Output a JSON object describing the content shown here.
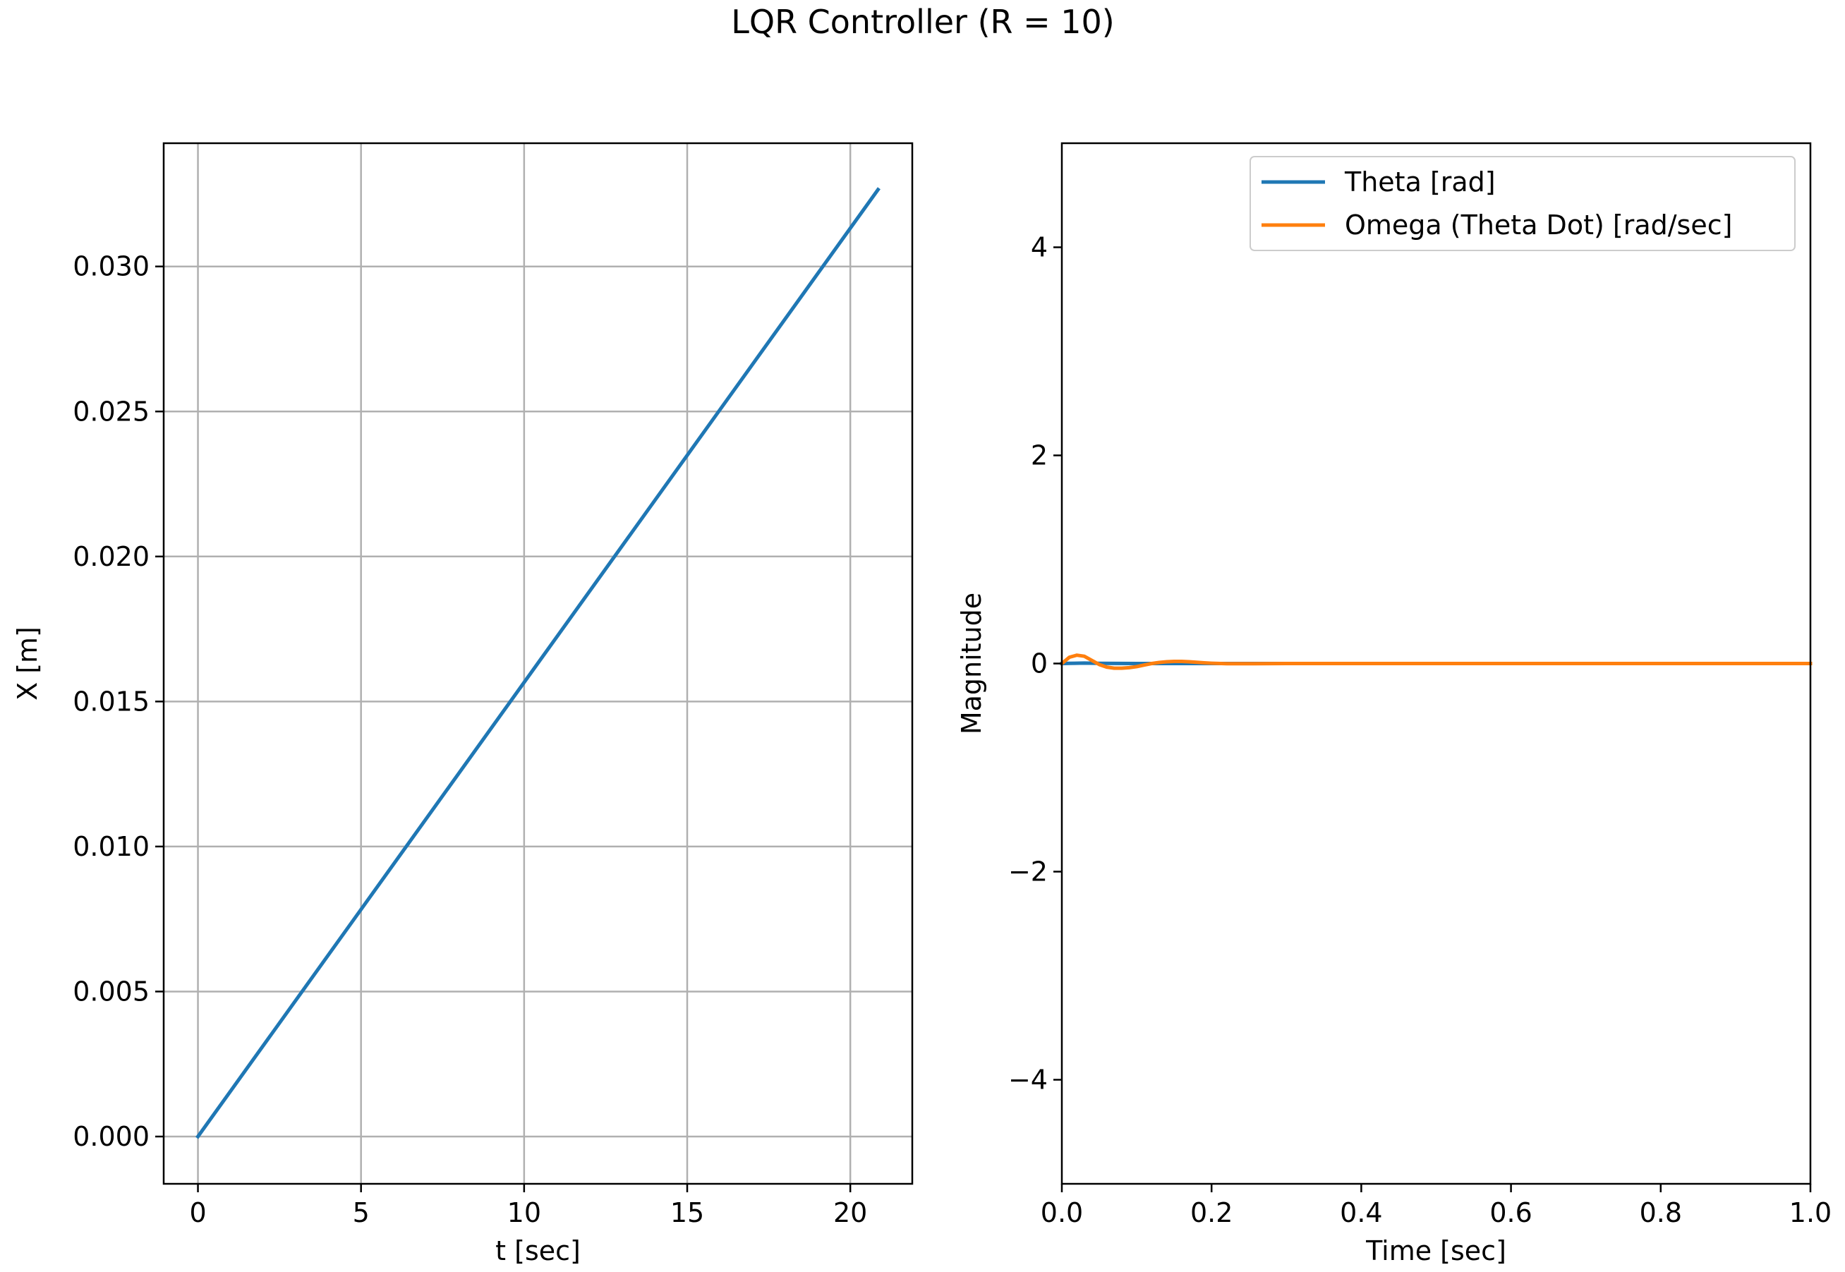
{
  "figure": {
    "title": "LQR Controller (R = 10)"
  },
  "chart_data": [
    {
      "type": "line",
      "xlabel": "t [sec]",
      "ylabel": "X [m]",
      "xlim": [
        -1.05,
        21.9
      ],
      "ylim": [
        -0.00163,
        0.03425
      ],
      "grid": true,
      "legend": null,
      "xticks": [
        {
          "value": 0,
          "label": "0"
        },
        {
          "value": 5,
          "label": "5"
        },
        {
          "value": 10,
          "label": "10"
        },
        {
          "value": 15,
          "label": "15"
        },
        {
          "value": 20,
          "label": "20"
        }
      ],
      "yticks": [
        {
          "value": 0.0,
          "label": "0.000"
        },
        {
          "value": 0.005,
          "label": "0.005"
        },
        {
          "value": 0.01,
          "label": "0.010"
        },
        {
          "value": 0.015,
          "label": "0.015"
        },
        {
          "value": 0.02,
          "label": "0.020"
        },
        {
          "value": 0.025,
          "label": "0.025"
        },
        {
          "value": 0.03,
          "label": "0.030"
        }
      ],
      "series": [
        {
          "name": "X",
          "color": "#1f77b4",
          "x": [
            0,
            20.85
          ],
          "y": [
            0.0,
            0.03265
          ]
        }
      ]
    },
    {
      "type": "line",
      "xlabel": "Time [sec]",
      "ylabel": "Magnitude",
      "xlim": [
        0.0,
        1.0
      ],
      "ylim": [
        -5,
        5
      ],
      "grid": false,
      "legend": "top-right",
      "xticks": [
        {
          "value": 0.0,
          "label": "0.0"
        },
        {
          "value": 0.2,
          "label": "0.2"
        },
        {
          "value": 0.4,
          "label": "0.4"
        },
        {
          "value": 0.6,
          "label": "0.6"
        },
        {
          "value": 0.8,
          "label": "0.8"
        },
        {
          "value": 1.0,
          "label": "1.0"
        }
      ],
      "yticks": [
        {
          "value": -4,
          "label": "−4"
        },
        {
          "value": -2,
          "label": "−2"
        },
        {
          "value": 0,
          "label": "0"
        },
        {
          "value": 2,
          "label": "2"
        },
        {
          "value": 4,
          "label": "4"
        }
      ],
      "series": [
        {
          "name": "Theta  [rad]",
          "color": "#1f77b4",
          "x": [
            0.0,
            0.01,
            0.03,
            0.05,
            0.1,
            0.2,
            1.0
          ],
          "y": [
            0.0,
            0.002,
            0.004,
            0.002,
            0.0,
            0.0,
            0.0
          ]
        },
        {
          "name": "Omega (Theta Dot)  [rad/sec]",
          "color": "#ff7f0e",
          "x": [
            0.0,
            0.01,
            0.02,
            0.03,
            0.04,
            0.05,
            0.06,
            0.07,
            0.08,
            0.09,
            0.1,
            0.11,
            0.12,
            0.13,
            0.14,
            0.15,
            0.16,
            0.17,
            0.18,
            0.19,
            0.2,
            0.22,
            0.25,
            0.3,
            1.0
          ],
          "y": [
            0.0,
            0.06,
            0.08,
            0.07,
            0.03,
            -0.01,
            -0.035,
            -0.045,
            -0.045,
            -0.04,
            -0.03,
            -0.015,
            0.0,
            0.01,
            0.017,
            0.02,
            0.02,
            0.017,
            0.012,
            0.007,
            0.003,
            -0.002,
            -0.002,
            0.0,
            0.0
          ]
        }
      ]
    }
  ]
}
